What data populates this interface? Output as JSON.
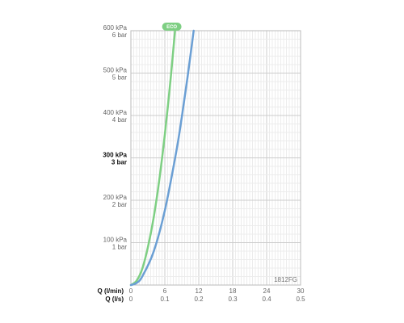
{
  "chart_data": {
    "type": "line",
    "x_axes": [
      {
        "label": "Q (l/min)",
        "ticks": [
          "0",
          "6",
          "12",
          "18",
          "24",
          "30"
        ],
        "values": [
          0,
          6,
          12,
          18,
          24,
          30
        ]
      },
      {
        "label": "Q (l/s)",
        "ticks": [
          "0",
          "0.1",
          "0.2",
          "0.3",
          "0.4",
          "0.5"
        ],
        "values": [
          0,
          0.1,
          0.2,
          0.3,
          0.4,
          0.5
        ]
      }
    ],
    "xlim": [
      0,
      30
    ],
    "ylim": [
      0,
      600
    ],
    "y_ticks": [
      {
        "value": 100,
        "kpa": "100 kPa",
        "bar": "1 bar",
        "bold": false
      },
      {
        "value": 200,
        "kpa": "200 kPa",
        "bar": "2 bar",
        "bold": false
      },
      {
        "value": 300,
        "kpa": "300 kPa",
        "bar": "3 bar",
        "bold": true
      },
      {
        "value": 400,
        "kpa": "400 kPa",
        "bar": "4 bar",
        "bold": false
      },
      {
        "value": 500,
        "kpa": "500 kPa",
        "bar": "5 bar",
        "bold": false
      },
      {
        "value": 600,
        "kpa": "600 kPa",
        "bar": "6 bar",
        "bold": false
      }
    ],
    "grid": true,
    "series": [
      {
        "color": "#7ecf83",
        "badge": "ECO",
        "x": [
          0,
          1,
          2,
          3,
          4,
          5,
          6,
          7,
          7.8
        ],
        "y": [
          0,
          10,
          38,
          89,
          157,
          246,
          355,
          483,
          600
        ]
      },
      {
        "color": "#6b9fd4",
        "x": [
          0,
          1,
          2,
          4,
          6,
          8,
          9,
          10,
          11.1
        ],
        "y": [
          0,
          5,
          20,
          78,
          176,
          313,
          396,
          489,
          600
        ]
      }
    ],
    "annotation": "1812FG"
  },
  "colors": {
    "grid_minor": "#ececec",
    "grid_major": "#cccccc",
    "frame": "#bbbbbb"
  }
}
